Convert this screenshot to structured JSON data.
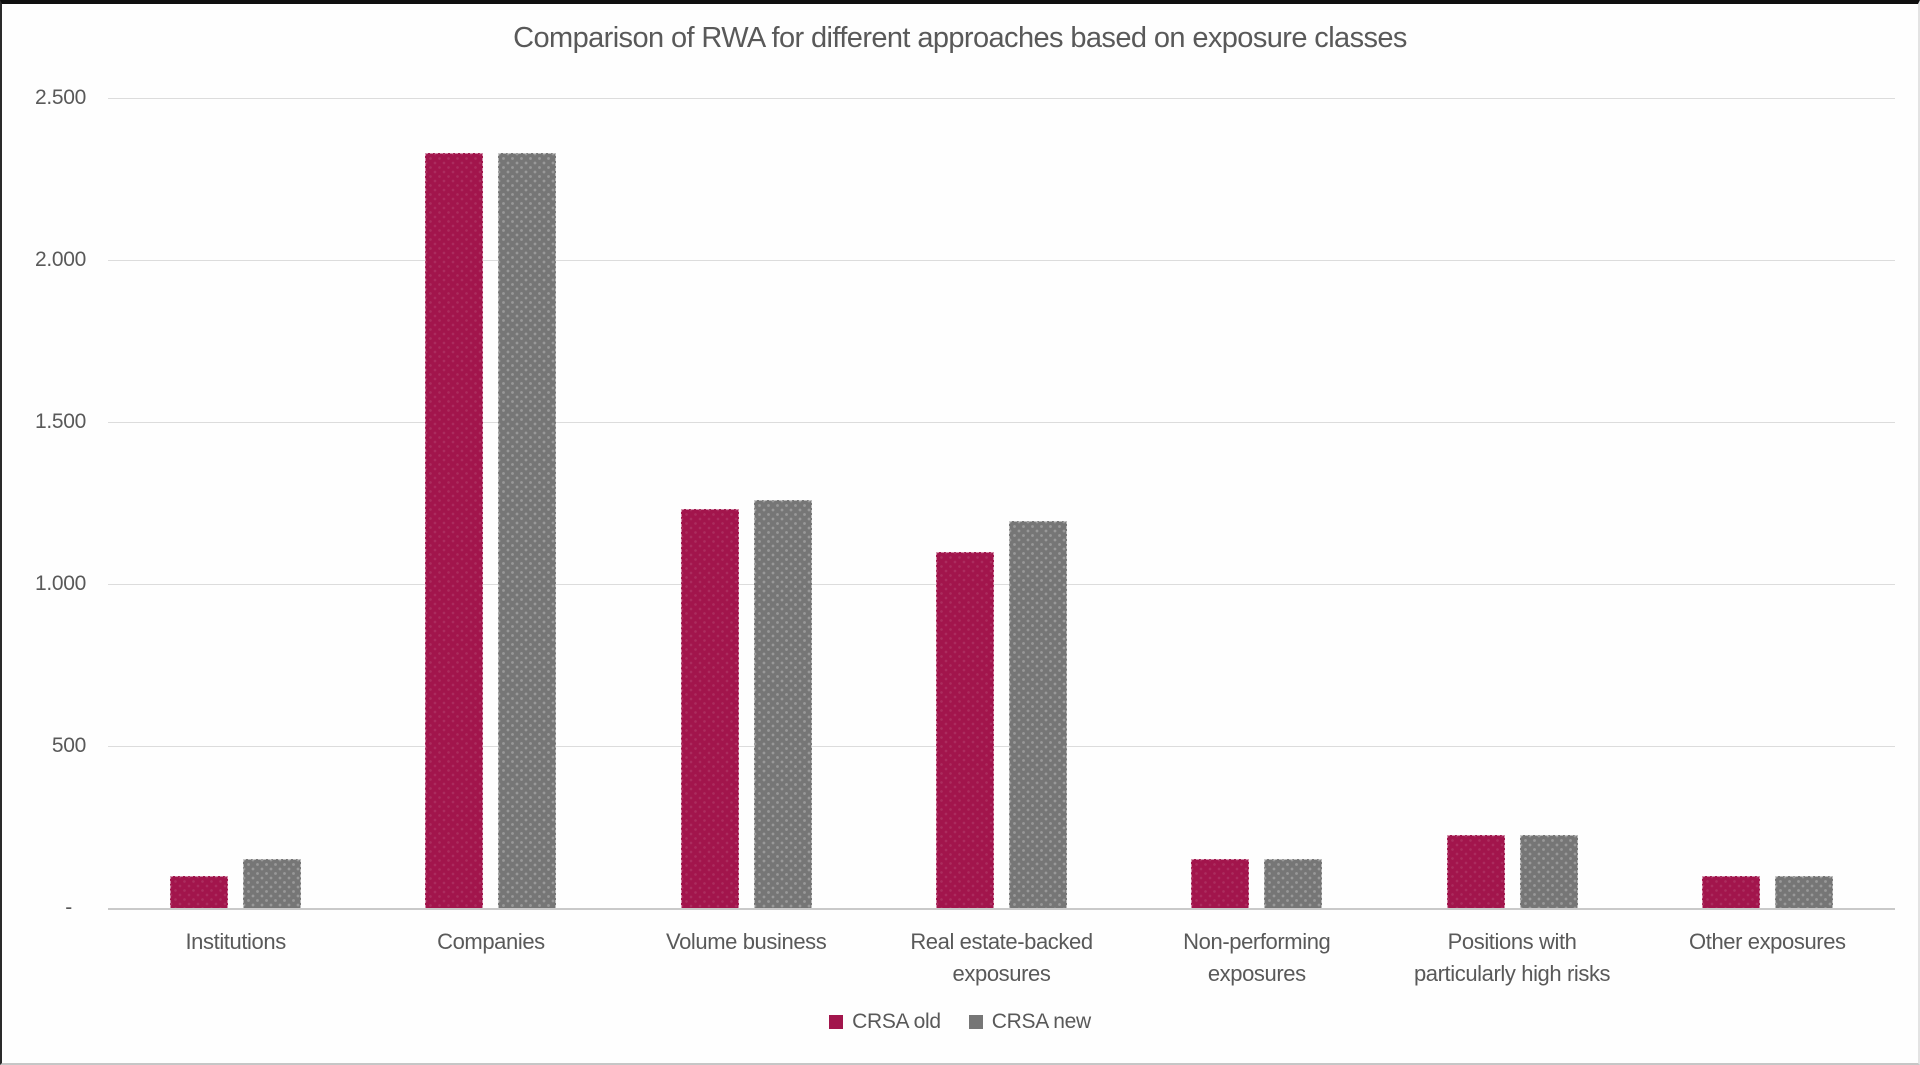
{
  "chart_data": {
    "type": "bar",
    "title": "Comparison of RWA for different approaches based on exposure classes",
    "categories": [
      "Institutions",
      "Companies",
      "Volume business",
      "Real estate-backed exposures",
      "Non-performing exposures",
      "Positions with particularly high risks",
      "Other exposures"
    ],
    "series": [
      {
        "name": "CRSA old",
        "color": "#a2154c",
        "values": [
          100,
          2330,
          1230,
          1100,
          150,
          225,
          100
        ]
      },
      {
        "name": "CRSA new",
        "color": "#767676",
        "values": [
          150,
          2330,
          1260,
          1195,
          150,
          225,
          100
        ]
      }
    ],
    "ylim": [
      0,
      2500
    ],
    "yticks": [
      {
        "value": 2500,
        "label": "2.500"
      },
      {
        "value": 2000,
        "label": "2.000"
      },
      {
        "value": 1500,
        "label": "1.500"
      },
      {
        "value": 1000,
        "label": "1.000"
      },
      {
        "value": 500,
        "label": "500"
      },
      {
        "value": 0,
        "label": "-"
      }
    ],
    "grid": "horizontal",
    "legend_position": "bottom"
  },
  "colors": {
    "series_old": "#a2154c",
    "series_new": "#767676",
    "text": "#595959",
    "gridline": "#dcdcdc",
    "axis_line": "#c9c9c9"
  }
}
